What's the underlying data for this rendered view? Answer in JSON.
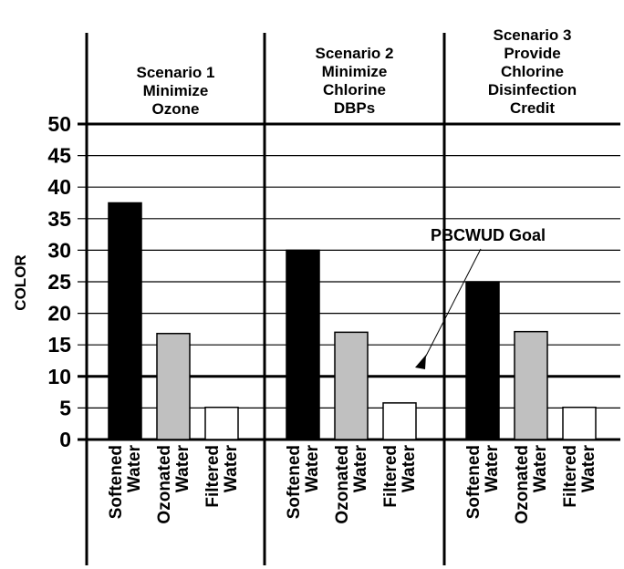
{
  "chart_data": {
    "type": "bar",
    "ylabel": "COLOR",
    "ylim": [
      0,
      50
    ],
    "yticks": [
      0,
      5,
      10,
      15,
      20,
      25,
      30,
      35,
      40,
      45,
      50
    ],
    "grid": true,
    "goal": {
      "value": 10,
      "label": "PBCWUD Goal"
    },
    "categories": [
      [
        "Softened",
        "Water"
      ],
      [
        "Ozonated",
        "Water"
      ],
      [
        "Filtered",
        "Water"
      ]
    ],
    "series_colors": [
      "#000000",
      "#c0c0c0",
      "#ffffff"
    ],
    "panels": [
      {
        "title": [
          "Scenario 1",
          "Minimize",
          "Ozone"
        ],
        "values": [
          37.5,
          16.8,
          5.1
        ]
      },
      {
        "title": [
          "Scenario 2",
          "Minimize",
          "Chlorine",
          "DBPs"
        ],
        "values": [
          30,
          17,
          5.8
        ]
      },
      {
        "title": [
          "Scenario 3",
          "Provide",
          "Chlorine",
          "Disinfection",
          "Credit"
        ],
        "values": [
          25,
          17.1,
          5.1
        ]
      }
    ]
  }
}
